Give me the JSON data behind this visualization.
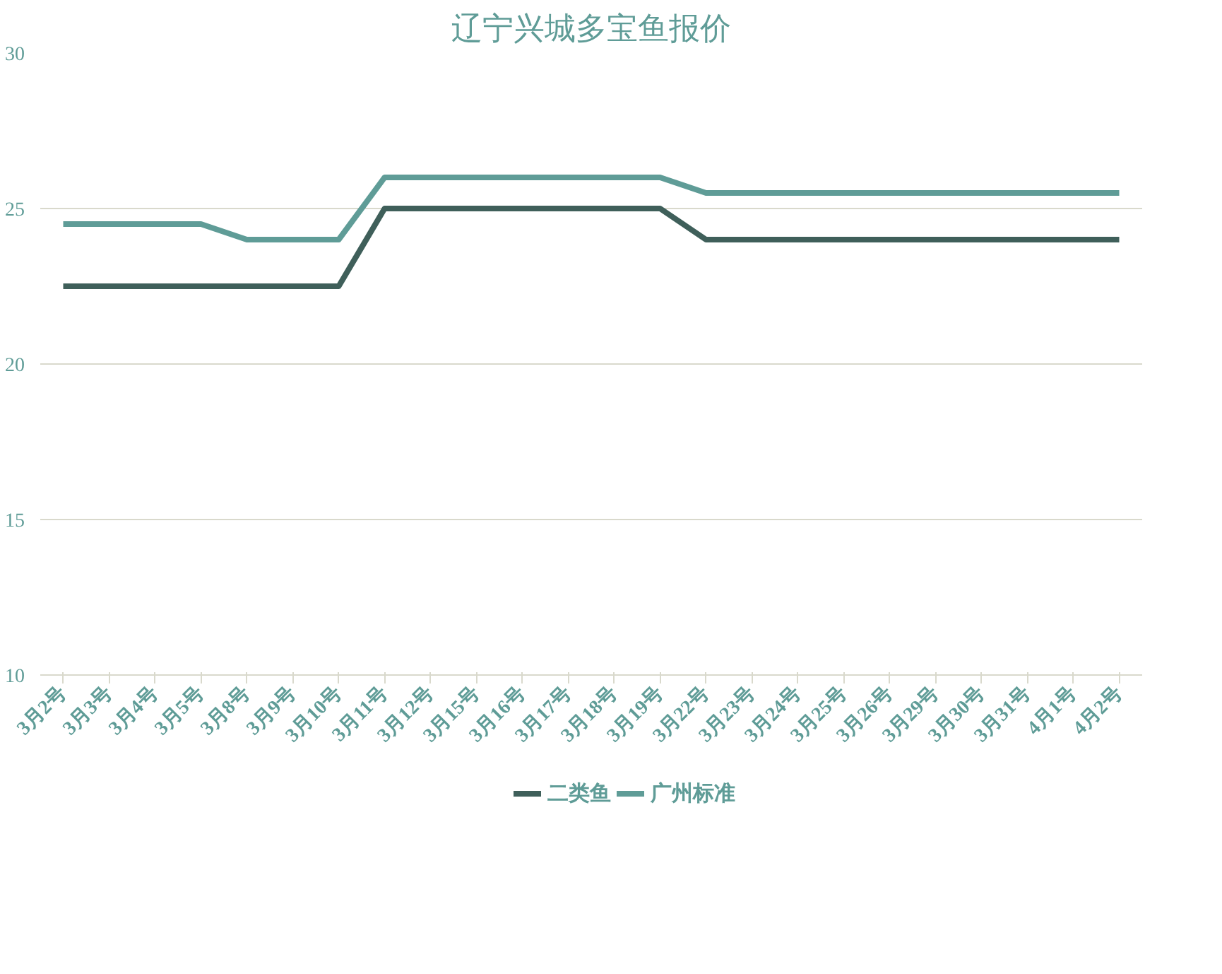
{
  "chart_data": {
    "type": "line",
    "title": "辽宁兴城多宝鱼报价",
    "categories": [
      "3月2号",
      "3月3号",
      "3月4号",
      "3月5号",
      "3月8号",
      "3月9号",
      "3月10号",
      "3月11号",
      "3月12号",
      "3月15号",
      "3月16号",
      "3月17号",
      "3月18号",
      "3月19号",
      "3月22号",
      "3月23号",
      "3月24号",
      "3月25号",
      "3月26号",
      "3月29号",
      "3月30号",
      "3月31号",
      "4月1号",
      "4月2号"
    ],
    "series": [
      {
        "name": "二类鱼",
        "color": "#3f5f5a",
        "values": [
          22.5,
          22.5,
          22.5,
          22.5,
          22.5,
          22.5,
          22.5,
          25,
          25,
          25,
          25,
          25,
          25,
          25,
          24,
          24,
          24,
          24,
          24,
          24,
          24,
          24,
          24,
          24
        ]
      },
      {
        "name": "广州标准",
        "color": "#5f9c97",
        "values": [
          24.5,
          24.5,
          24.5,
          24.5,
          24,
          24,
          24,
          26,
          26,
          26,
          26,
          26,
          26,
          26,
          25.5,
          25.5,
          25.5,
          25.5,
          25.5,
          25.5,
          25.5,
          25.5,
          25.5,
          25.5
        ]
      }
    ],
    "ylim": [
      10,
      30
    ],
    "yticks": [
      10,
      15,
      20,
      25,
      30
    ],
    "grid": "y",
    "legend": "bottom",
    "line_style": "solid",
    "marker": "none"
  }
}
